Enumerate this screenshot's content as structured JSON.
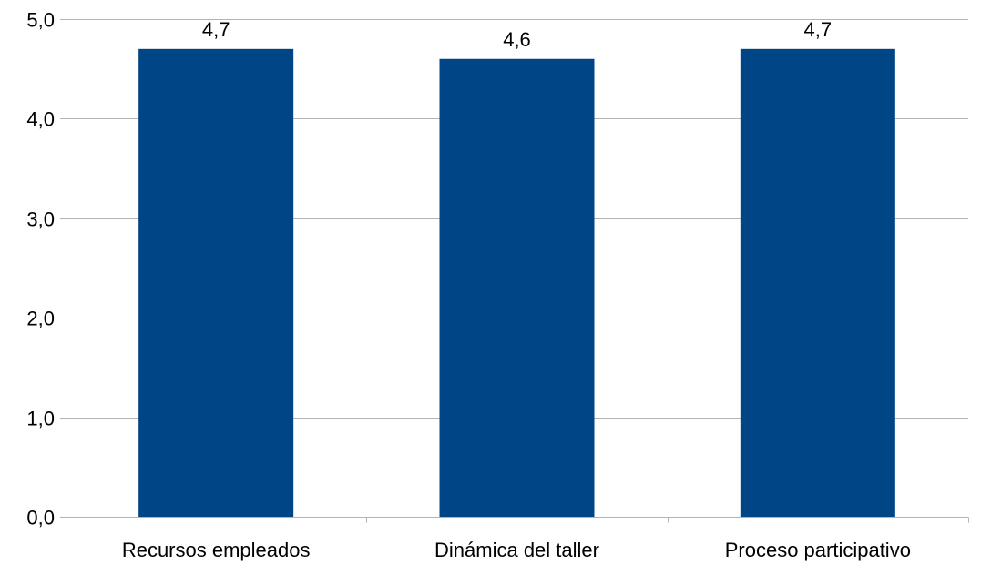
{
  "chart_data": {
    "type": "bar",
    "title": "",
    "xlabel": "",
    "ylabel": "",
    "categories": [
      "Recursos empleados",
      "Dinámica del taller",
      "Proceso participativo"
    ],
    "values": [
      4.7,
      4.6,
      4.7
    ],
    "data_labels": [
      "4,7",
      "4,6",
      "4,7"
    ],
    "ylim": [
      0,
      5
    ],
    "yticks": [
      0,
      1,
      2,
      3,
      4,
      5
    ],
    "ytick_labels": [
      "0,0",
      "1,0",
      "2,0",
      "3,0",
      "4,0",
      "5,0"
    ],
    "grid": true,
    "legend": "none",
    "bar_color": "#004586"
  }
}
